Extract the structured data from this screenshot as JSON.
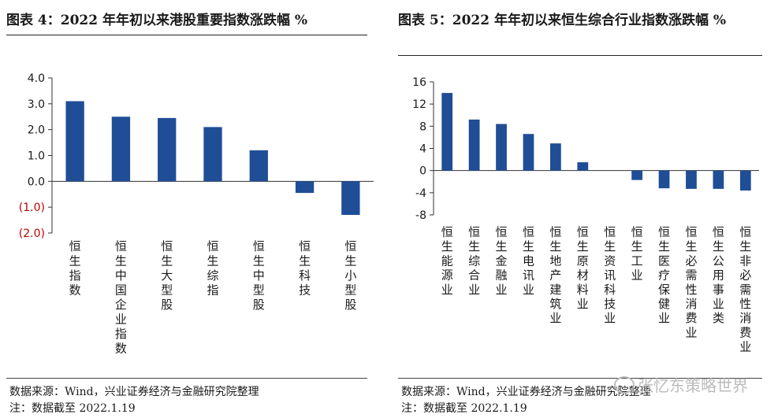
{
  "left": {
    "title": "图表 4：2022 年年初以来港股重要指数涨跌幅 %",
    "source": "数据来源：Wind，兴业证券经济与金融研究院整理",
    "note": "注：数据截至 2022.1.19"
  },
  "right": {
    "title": "图表 5：2022 年年初以来恒生综合行业指数涨跌幅 %",
    "source": "数据来源：Wind，兴业证券经济与金融研究院整理",
    "note": "注：数据截至 2022.1.19"
  },
  "watermark": "张忆东策略世界",
  "colors": {
    "bar": "#1f4e96",
    "negative_tick": "#c00000",
    "axis": "#333333"
  },
  "chart_data": [
    {
      "type": "bar",
      "title": "2022 年年初以来港股重要指数涨跌幅 %",
      "categories": [
        "恒生指数",
        "恒生中国企业指数",
        "恒生大型股",
        "恒生综指",
        "恒生中型股",
        "恒生科技",
        "恒生小型股"
      ],
      "values": [
        3.1,
        2.5,
        2.45,
        2.1,
        1.2,
        -0.45,
        -1.3
      ],
      "ylim": [
        -2.0,
        4.0
      ],
      "yticks": [
        4.0,
        3.0,
        2.0,
        1.0,
        0.0,
        -1.0,
        -2.0
      ],
      "ytick_labels": [
        "4.0",
        "3.0",
        "2.0",
        "1.0",
        "0.0",
        "(1.0)",
        "(2.0)"
      ],
      "xlabel": "",
      "ylabel": "",
      "grid": false
    },
    {
      "type": "bar",
      "title": "2022 年年初以来恒生综合行业指数涨跌幅 %",
      "categories": [
        "恒生能源业",
        "恒生综合业",
        "恒生金融业",
        "恒生电讯业",
        "恒生地产建筑业",
        "恒生原材料业",
        "恒生资讯科技业",
        "恒生工业",
        "恒生医疗保健业",
        "恒生必需性消费业",
        "恒生公用事业类",
        "恒生非必需性消费业"
      ],
      "values": [
        14.0,
        9.2,
        8.4,
        6.6,
        4.9,
        1.5,
        0.0,
        -1.7,
        -3.2,
        -3.3,
        -3.3,
        -3.6
      ],
      "ylim": [
        -8,
        16
      ],
      "yticks": [
        16,
        12,
        8,
        4,
        0,
        -4,
        -8
      ],
      "ytick_labels": [
        "16",
        "12",
        "8",
        "4",
        "0",
        "-4",
        "-8"
      ],
      "xlabel": "",
      "ylabel": "",
      "grid": false
    }
  ]
}
